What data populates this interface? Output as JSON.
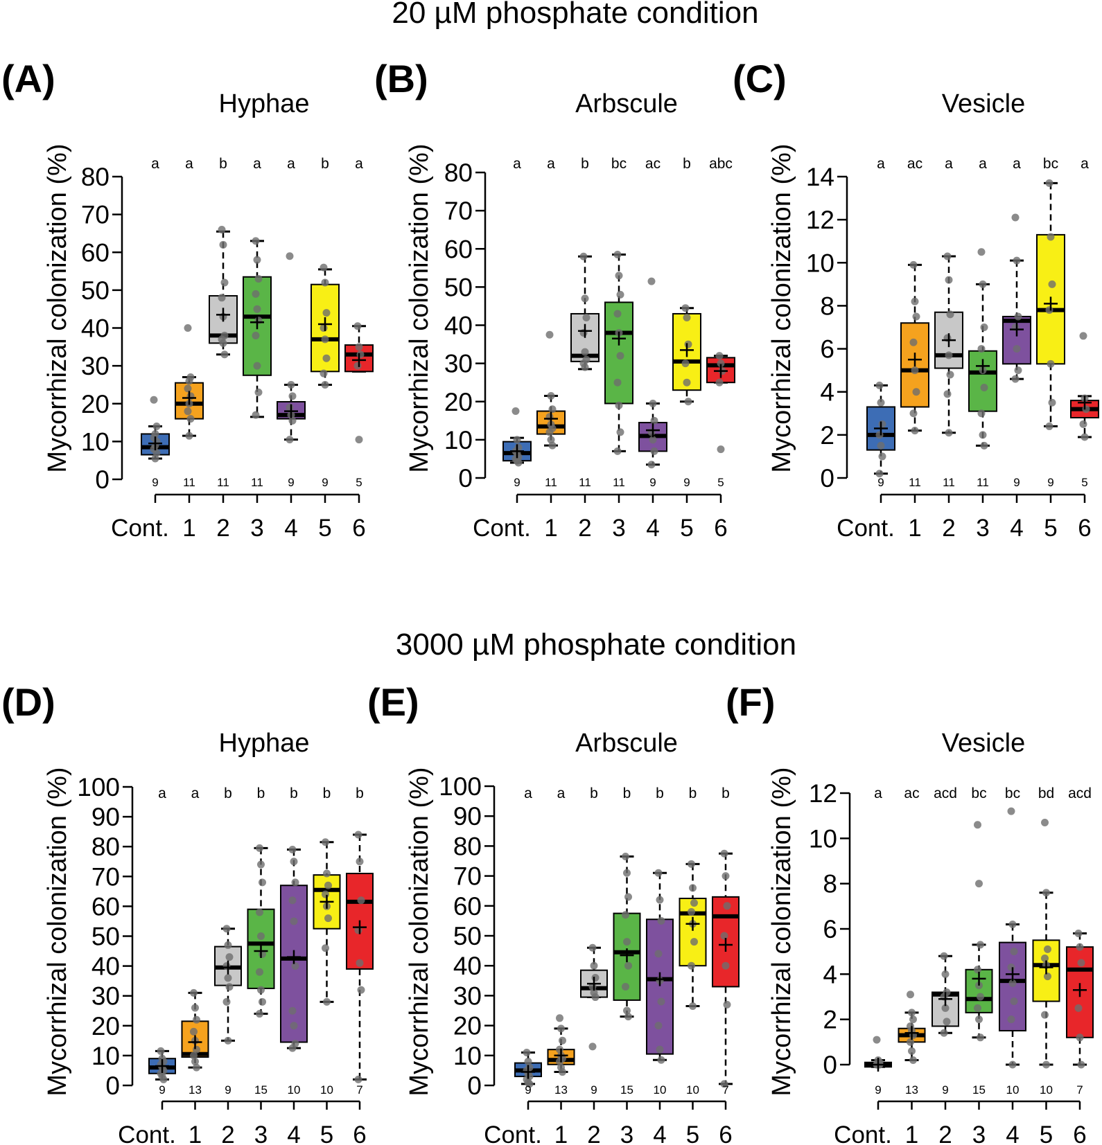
{
  "chart_data": [
    {
      "type": "boxplot",
      "panel": "(A)",
      "section": "20 µM phosphate condition",
      "title": "Hyphae",
      "ylabel": "Mycorrhizal colonization (%)",
      "ylim": [
        0,
        80
      ],
      "yticks": [
        0,
        10,
        20,
        30,
        40,
        50,
        60,
        70,
        80
      ],
      "categories": [
        "Cont.",
        "1",
        "2",
        "3",
        "4",
        "5",
        "6"
      ],
      "colors": [
        "#3d6db5",
        "#f5a21e",
        "#c8c8c8",
        "#5ab547",
        "#7e519e",
        "#f8ef15",
        "#e8262a"
      ],
      "letters": [
        "a",
        "a",
        "b",
        "a",
        "a",
        "b",
        "a"
      ],
      "n": [
        9,
        11,
        11,
        11,
        9,
        9,
        5
      ],
      "q1": [
        6.5,
        16,
        36,
        27.5,
        16,
        28.5,
        28.5
      ],
      "median": [
        8.5,
        20,
        38,
        43,
        17,
        37,
        33
      ],
      "q3": [
        12,
        25.5,
        48.5,
        53.5,
        20.5,
        51.5,
        35.5
      ],
      "whisker_low": [
        5.5,
        11.5,
        33,
        16.5,
        10.5,
        25,
        28.5
      ],
      "whisker_high": [
        14,
        27,
        65.5,
        63,
        25,
        55.5,
        40.5
      ],
      "mean": [
        9.5,
        21.5,
        43.5,
        41.5,
        18,
        41,
        31.5
      ],
      "points": [
        [
          21,
          5.5,
          7,
          8,
          9,
          10,
          11,
          12,
          14
        ],
        [
          40,
          11.5,
          16,
          18,
          20,
          22,
          24,
          26,
          27
        ],
        [
          66,
          62,
          52,
          48,
          43,
          38,
          37,
          36,
          33
        ],
        [
          63,
          58,
          53,
          49,
          45,
          42,
          38,
          30,
          23,
          17
        ],
        [
          59,
          25,
          22,
          19,
          17,
          15.5,
          10.5
        ],
        [
          56,
          52,
          44,
          40,
          37,
          32,
          28,
          25
        ],
        [
          40.5,
          35,
          33,
          30,
          10.5
        ]
      ]
    },
    {
      "type": "boxplot",
      "panel": "(B)",
      "section": "20 µM phosphate condition",
      "title": "Arbscule",
      "ylabel": "Mycorrhizal colonization (%)",
      "ylim": [
        0,
        80
      ],
      "yticks": [
        0,
        10,
        20,
        30,
        40,
        50,
        60,
        70,
        80
      ],
      "categories": [
        "Cont.",
        "1",
        "2",
        "3",
        "4",
        "5",
        "6"
      ],
      "colors": [
        "#3d6db5",
        "#f5a21e",
        "#c8c8c8",
        "#5ab547",
        "#7e519e",
        "#f8ef15",
        "#e8262a"
      ],
      "letters": [
        "a",
        "a",
        "b",
        "bc",
        "ac",
        "b",
        "abc"
      ],
      "n": [
        9,
        11,
        11,
        11,
        9,
        9,
        5
      ],
      "q1": [
        4.5,
        11.5,
        30.5,
        19.5,
        7,
        23,
        25
      ],
      "median": [
        6.5,
        13.5,
        32,
        38,
        11,
        30.5,
        29.5
      ],
      "q3": [
        9.5,
        17.5,
        43,
        46,
        14.5,
        43,
        31.5
      ],
      "whisker_low": [
        4,
        8.5,
        28.5,
        7,
        3.5,
        20,
        25
      ],
      "whisker_high": [
        10.5,
        21.5,
        58,
        58.5,
        19.5,
        44.5,
        32
      ],
      "mean": [
        7,
        15.5,
        38.5,
        36.5,
        12.5,
        33.5,
        28
      ],
      "points": [
        [
          17.5,
          10,
          8,
          7,
          6.5,
          5.5,
          5,
          4.5,
          4
        ],
        [
          37.5,
          21.5,
          18,
          16,
          14,
          13,
          12,
          10,
          8.5
        ],
        [
          58,
          47,
          42,
          38,
          33,
          31,
          30,
          29
        ],
        [
          58.5,
          53,
          48,
          43,
          38,
          32,
          25,
          19,
          12,
          7
        ],
        [
          51.5,
          19.5,
          15,
          12,
          10,
          7,
          3.5
        ],
        [
          44.5,
          42,
          35,
          30,
          25,
          20
        ],
        [
          32,
          30,
          28,
          25,
          7.5
        ]
      ]
    },
    {
      "type": "boxplot",
      "panel": "(C)",
      "section": "20 µM phosphate condition",
      "title": "Vesicle",
      "ylabel": "Mycorrhizal colonization (%)",
      "ylim": [
        0,
        14
      ],
      "yticks": [
        0,
        2,
        4,
        6,
        8,
        10,
        12,
        14
      ],
      "categories": [
        "Cont.",
        "1",
        "2",
        "3",
        "4",
        "5",
        "6"
      ],
      "colors": [
        "#3d6db5",
        "#f5a21e",
        "#c8c8c8",
        "#5ab547",
        "#7e519e",
        "#f8ef15",
        "#e8262a"
      ],
      "letters": [
        "a",
        "ac",
        "a",
        "a",
        "a",
        "bc",
        "a"
      ],
      "n": [
        9,
        11,
        11,
        11,
        9,
        9,
        5
      ],
      "q1": [
        1.3,
        3.3,
        5.1,
        3.1,
        5.3,
        5.3,
        2.8
      ],
      "median": [
        2,
        5,
        5.7,
        4.9,
        7.3,
        7.8,
        3.2
      ],
      "q3": [
        3.3,
        7.2,
        7.7,
        5.9,
        7.5,
        11.3,
        3.6
      ],
      "whisker_low": [
        0.2,
        2.2,
        2.1,
        1.5,
        4.6,
        2.4,
        1.9
      ],
      "whisker_high": [
        4.3,
        9.9,
        10.3,
        9,
        10.1,
        13.7,
        3.8
      ],
      "mean": [
        2.3,
        5.5,
        6.4,
        5.2,
        6.9,
        8.1,
        3.5
      ],
      "points": [
        [
          4.3,
          3.5,
          2.5,
          2,
          1.5,
          1,
          0.2
        ],
        [
          9.9,
          8.2,
          7.5,
          6.3,
          5,
          4,
          3,
          2.2
        ],
        [
          10.3,
          9.2,
          7.6,
          6.5,
          5.7,
          4.8,
          3.9,
          2.1
        ],
        [
          10.5,
          9,
          7,
          6,
          5,
          4.2,
          3,
          2,
          1.5
        ],
        [
          12.1,
          10.1,
          7.5,
          7,
          6,
          5,
          4.6
        ],
        [
          13.7,
          11.2,
          9,
          7.8,
          5.3,
          3.5,
          2.4
        ],
        [
          6.6,
          3.7,
          3.2,
          2.5,
          1.9
        ]
      ]
    },
    {
      "type": "boxplot",
      "panel": "(D)",
      "section": "3000 µM phosphate condition",
      "title": "Hyphae",
      "ylabel": "Mycorrhizal colonization (%)",
      "ylim": [
        0,
        100
      ],
      "yticks": [
        0,
        10,
        20,
        30,
        40,
        50,
        60,
        70,
        80,
        90,
        100
      ],
      "categories": [
        "Cont.",
        "1",
        "2",
        "3",
        "4",
        "5",
        "6"
      ],
      "colors": [
        "#3d6db5",
        "#f5a21e",
        "#c8c8c8",
        "#5ab547",
        "#7e519e",
        "#f8ef15",
        "#e8262a"
      ],
      "letters": [
        "a",
        "a",
        "b",
        "b",
        "b",
        "b",
        "b"
      ],
      "n": [
        9,
        13,
        9,
        15,
        10,
        10,
        7
      ],
      "q1": [
        4,
        9.5,
        33.5,
        32.5,
        14.5,
        52.5,
        39
      ],
      "median": [
        6,
        10.5,
        39.5,
        47.5,
        42.5,
        65.5,
        61.5
      ],
      "q3": [
        9,
        21.5,
        46.5,
        59,
        67,
        70.5,
        71
      ],
      "whisker_low": [
        2,
        6,
        15,
        24,
        12.5,
        28,
        2
      ],
      "whisker_high": [
        11.5,
        31,
        52.5,
        79.5,
        79,
        81.5,
        84
      ],
      "mean": [
        6.5,
        14.5,
        39.5,
        45,
        43,
        61.5,
        53
      ],
      "points": [
        [
          11.5,
          9,
          8,
          7,
          6,
          5,
          4,
          3,
          2
        ],
        [
          31,
          26,
          22,
          18,
          15,
          12,
          10,
          8,
          6
        ],
        [
          52.5,
          47,
          43,
          40,
          36,
          33,
          28,
          15
        ],
        [
          79.5,
          74,
          68,
          58,
          50,
          44,
          38,
          32,
          28,
          24
        ],
        [
          79,
          75,
          68,
          62,
          55,
          40,
          25,
          20,
          14,
          12.5
        ],
        [
          81.5,
          71,
          67,
          64,
          60,
          56,
          46,
          28
        ],
        [
          84,
          75,
          62,
          52,
          41,
          32,
          2
        ]
      ]
    },
    {
      "type": "boxplot",
      "panel": "(E)",
      "section": "3000 µM phosphate condition",
      "title": "Arbscule",
      "ylabel": "Mycorrhizal colonization (%)",
      "ylim": [
        0,
        100
      ],
      "yticks": [
        0,
        10,
        20,
        30,
        40,
        50,
        60,
        70,
        80,
        90,
        100
      ],
      "categories": [
        "Cont.",
        "1",
        "2",
        "3",
        "4",
        "5",
        "6"
      ],
      "colors": [
        "#3d6db5",
        "#f5a21e",
        "#c8c8c8",
        "#5ab547",
        "#7e519e",
        "#f8ef15",
        "#e8262a"
      ],
      "letters": [
        "a",
        "a",
        "b",
        "b",
        "b",
        "b",
        "b"
      ],
      "n": [
        9,
        13,
        9,
        15,
        10,
        10,
        7
      ],
      "q1": [
        3,
        7,
        29.5,
        28.5,
        10.5,
        40,
        33
      ],
      "median": [
        5,
        8.5,
        32.5,
        44.5,
        35.5,
        57.5,
        56.5
      ],
      "q3": [
        7.5,
        12,
        38.5,
        57.5,
        55.5,
        62.5,
        63
      ],
      "whisker_low": [
        0.5,
        4.5,
        29.5,
        23,
        8.5,
        26.5,
        0.5
      ],
      "whisker_high": [
        11,
        19,
        46,
        76.5,
        71,
        74,
        77.5
      ],
      "mean": [
        4.5,
        10,
        34,
        43.5,
        35.5,
        54,
        47
      ],
      "points": [
        [
          11,
          8,
          6,
          5,
          4,
          3,
          2,
          1,
          0.5
        ],
        [
          22.5,
          19,
          15,
          12,
          10,
          9,
          8,
          6,
          4.5
        ],
        [
          46,
          40,
          36,
          33,
          31,
          29.5,
          13
        ],
        [
          76.5,
          71,
          63,
          57,
          48,
          40,
          33,
          25,
          23
        ],
        [
          71,
          62,
          55,
          44,
          35,
          28,
          20,
          12,
          8.5
        ],
        [
          74,
          66,
          61,
          58,
          54,
          48,
          40,
          26.5
        ],
        [
          77.5,
          70,
          60,
          50,
          40,
          27,
          0.5
        ]
      ]
    },
    {
      "type": "boxplot",
      "panel": "(F)",
      "section": "3000 µM phosphate condition",
      "title": "Vesicle",
      "ylabel": "Mycorrhizal colonization (%)",
      "ylim": [
        0,
        12
      ],
      "yticks": [
        0,
        2,
        4,
        6,
        8,
        10,
        12
      ],
      "categories": [
        "Cont.",
        "1",
        "2",
        "3",
        "4",
        "5",
        "6"
      ],
      "colors": [
        "#3d6db5",
        "#f5a21e",
        "#c8c8c8",
        "#5ab547",
        "#7e519e",
        "#f8ef15",
        "#e8262a"
      ],
      "letters": [
        "a",
        "ac",
        "acd",
        "bc",
        "bc",
        "bd",
        "acd"
      ],
      "n": [
        9,
        13,
        9,
        15,
        10,
        10,
        7
      ],
      "q1": [
        -0.1,
        1,
        1.7,
        2.3,
        1.5,
        2.8,
        1.2
      ],
      "median": [
        0,
        1.3,
        3.1,
        2.9,
        3.7,
        4.4,
        4.2
      ],
      "q3": [
        0.1,
        1.6,
        3.2,
        4.2,
        5.4,
        5.5,
        5.2
      ],
      "whisker_low": [
        -0.1,
        0.2,
        1.4,
        1.2,
        0,
        0,
        0
      ],
      "whisker_high": [
        0.2,
        2.3,
        4.8,
        5.3,
        6.2,
        7.6,
        5.8
      ],
      "mean": [
        0,
        1.4,
        2.9,
        3.8,
        4,
        4.3,
        3.3
      ],
      "points": [
        [
          1.1,
          0.2,
          0.1,
          0,
          0,
          0,
          0,
          0,
          0
        ],
        [
          3.1,
          2.3,
          2,
          1.7,
          1.5,
          1.3,
          1,
          0.6,
          0.2
        ],
        [
          4.8,
          4,
          3.2,
          3,
          2.5,
          1.9,
          1.4
        ],
        [
          10.6,
          8,
          5.3,
          4.2,
          3.5,
          3,
          2.5,
          2,
          1.2
        ],
        [
          11.2,
          6.2,
          5,
          4.3,
          3.6,
          2.8,
          2,
          0
        ],
        [
          10.7,
          7.6,
          5.1,
          4.7,
          4.4,
          3.9,
          2.2,
          0
        ],
        [
          5.8,
          5.2,
          4.5,
          2.5,
          1.2,
          0
        ]
      ]
    }
  ],
  "sections": {
    "top_title": "20 µM phosphate condition",
    "bottom_title": "3000 µM phosphate condition"
  },
  "panels": [
    {
      "letter": "(A)",
      "title": "Hyphae"
    },
    {
      "letter": "(B)",
      "title": "Arbscule"
    },
    {
      "letter": "(C)",
      "title": "Vesicle"
    },
    {
      "letter": "(D)",
      "title": "Hyphae"
    },
    {
      "letter": "(E)",
      "title": "Arbscule"
    },
    {
      "letter": "(F)",
      "title": "Vesicle"
    }
  ]
}
